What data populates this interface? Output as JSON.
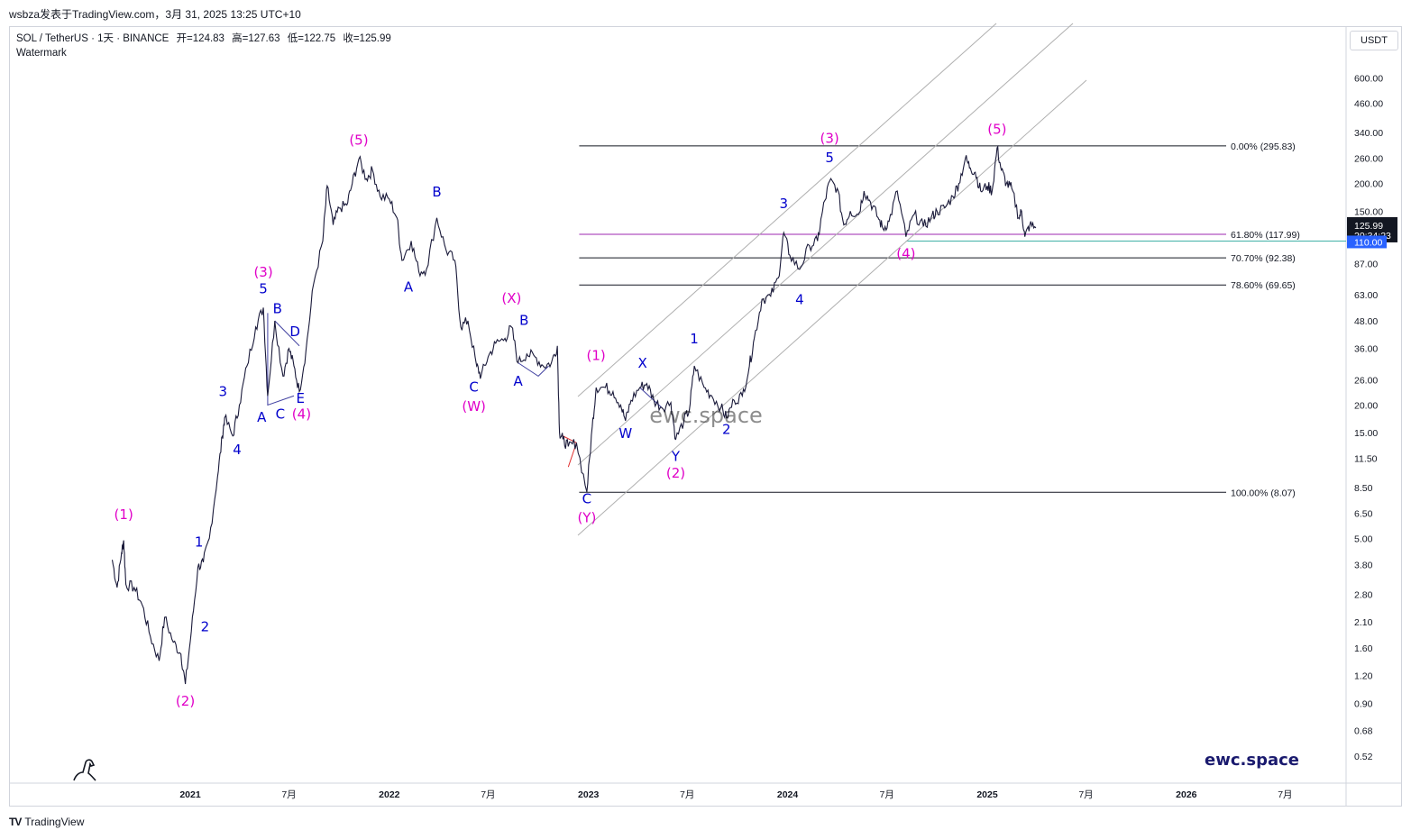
{
  "header": {
    "source": "wsbza发表于TradingView.com，3月 31, 2025 13:25 UTC+10"
  },
  "legend": {
    "symbol": "SOL / TetherUS · 1天 · BINANCE",
    "open": "开=124.83",
    "high": "高=127.63",
    "low": "低=122.75",
    "close": "收=125.99",
    "indicator": "Watermark"
  },
  "currency_button": "USDT",
  "footer": {
    "brand": "TradingView",
    "logo": "TV"
  },
  "watermark": "ewc.space",
  "brand_text": "ewc.space",
  "price_tags": {
    "last": "125.99",
    "countdown": "20:34:23",
    "line": "110.00"
  },
  "colors": {
    "pink": "#e000c8",
    "blue": "#0000cc",
    "price_line": "#1a1a3a",
    "fib_618": "#9c27b0",
    "channel": "#b0b0b0",
    "tag_blue": "#2962ff",
    "tag_dark": "#131722"
  },
  "chart_data": {
    "type": "line",
    "title": "SOL / TetherUS",
    "scale": "log",
    "y_axis_ticks": [
      "600.00",
      "460.00",
      "340.00",
      "260.00",
      "200.00",
      "150.00",
      "110.00",
      "87.00",
      "63.00",
      "48.00",
      "36.00",
      "26.00",
      "20.00",
      "15.00",
      "11.50",
      "8.50",
      "6.50",
      "5.00",
      "3.80",
      "2.80",
      "2.10",
      "1.60",
      "1.20",
      "0.90",
      "0.68",
      "0.52"
    ],
    "x_axis_ticks": [
      "2021",
      "7月",
      "2022",
      "7月",
      "2023",
      "7月",
      "2024",
      "7月",
      "2025",
      "7月",
      "2026",
      "7月"
    ],
    "series": [
      {
        "points": [
          [
            "2020-08-11",
            4.0
          ],
          [
            "2020-08-20",
            3.0
          ],
          [
            "2020-08-28",
            4.3
          ],
          [
            "2020-09-01",
            4.9
          ],
          [
            "2020-09-05",
            3.1
          ],
          [
            "2020-09-20",
            3.0
          ],
          [
            "2020-10-05",
            2.5
          ],
          [
            "2020-10-20",
            1.8
          ],
          [
            "2020-11-05",
            1.4
          ],
          [
            "2020-11-15",
            2.2
          ],
          [
            "2020-12-01",
            1.7
          ],
          [
            "2020-12-15",
            1.5
          ],
          [
            "2020-12-23",
            1.1
          ],
          [
            "2021-01-03",
            1.9
          ],
          [
            "2021-01-15",
            3.7
          ],
          [
            "2021-01-25",
            3.9
          ],
          [
            "2021-02-05",
            5.0
          ],
          [
            "2021-02-20",
            9.5
          ],
          [
            "2021-03-01",
            14.5
          ],
          [
            "2021-03-05",
            17.5
          ],
          [
            "2021-03-20",
            14.5
          ],
          [
            "2021-04-01",
            20.0
          ],
          [
            "2021-04-15",
            30.0
          ],
          [
            "2021-05-01",
            45.0
          ],
          [
            "2021-05-15",
            55.0
          ],
          [
            "2021-05-23",
            22.0
          ],
          [
            "2021-06-05",
            48.0
          ],
          [
            "2021-06-20",
            27.0
          ],
          [
            "2021-07-01",
            36.0
          ],
          [
            "2021-07-10",
            30.0
          ],
          [
            "2021-07-20",
            23.0
          ],
          [
            "2021-08-01",
            35.0
          ],
          [
            "2021-08-15",
            70.0
          ],
          [
            "2021-09-01",
            110.0
          ],
          [
            "2021-09-09",
            195.0
          ],
          [
            "2021-09-20",
            130.0
          ],
          [
            "2021-10-01",
            155.0
          ],
          [
            "2021-10-15",
            160.0
          ],
          [
            "2021-10-25",
            200.0
          ],
          [
            "2021-11-06",
            258.0
          ],
          [
            "2021-11-20",
            210.0
          ],
          [
            "2021-12-01",
            230.0
          ],
          [
            "2021-12-15",
            175.0
          ],
          [
            "2022-01-01",
            170.0
          ],
          [
            "2022-01-15",
            140.0
          ],
          [
            "2022-01-24",
            90.0
          ],
          [
            "2022-02-10",
            110.0
          ],
          [
            "2022-02-24",
            80.0
          ],
          [
            "2022-03-10",
            82.0
          ],
          [
            "2022-03-29",
            140.0
          ],
          [
            "2022-04-15",
            100.0
          ],
          [
            "2022-05-01",
            90.0
          ],
          [
            "2022-05-12",
            45.0
          ],
          [
            "2022-05-25",
            48.0
          ],
          [
            "2022-06-10",
            30.0
          ],
          [
            "2022-06-18",
            27.0
          ],
          [
            "2022-07-01",
            33.0
          ],
          [
            "2022-07-15",
            38.0
          ],
          [
            "2022-08-01",
            40.0
          ],
          [
            "2022-08-13",
            45.0
          ],
          [
            "2022-08-25",
            31.0
          ],
          [
            "2022-09-10",
            34.0
          ],
          [
            "2022-09-25",
            33.0
          ],
          [
            "2022-10-10",
            30.0
          ],
          [
            "2022-10-25",
            31.0
          ],
          [
            "2022-11-05",
            37.0
          ],
          [
            "2022-11-09",
            15.0
          ],
          [
            "2022-11-15",
            14.0
          ],
          [
            "2022-11-25",
            13.0
          ],
          [
            "2022-12-10",
            13.5
          ],
          [
            "2022-12-29",
            8.1
          ],
          [
            "2023-01-08",
            16.0
          ],
          [
            "2023-01-15",
            24.0
          ],
          [
            "2023-02-01",
            24.0
          ],
          [
            "2023-02-15",
            23.0
          ],
          [
            "2023-03-01",
            20.0
          ],
          [
            "2023-03-10",
            17.0
          ],
          [
            "2023-03-20",
            21.0
          ],
          [
            "2023-04-05",
            24.0
          ],
          [
            "2023-04-18",
            25.0
          ],
          [
            "2023-05-01",
            21.0
          ],
          [
            "2023-05-15",
            19.5
          ],
          [
            "2023-06-01",
            20.5
          ],
          [
            "2023-06-10",
            14.0
          ],
          [
            "2023-06-25",
            17.0
          ],
          [
            "2023-07-05",
            19.0
          ],
          [
            "2023-07-14",
            30.0
          ],
          [
            "2023-08-01",
            24.0
          ],
          [
            "2023-08-15",
            22.0
          ],
          [
            "2023-09-01",
            19.5
          ],
          [
            "2023-09-11",
            17.5
          ],
          [
            "2023-09-25",
            21.0
          ],
          [
            "2023-10-10",
            22.0
          ],
          [
            "2023-10-23",
            30.0
          ],
          [
            "2023-11-01",
            40.0
          ],
          [
            "2023-11-15",
            60.0
          ],
          [
            "2023-12-01",
            62.0
          ],
          [
            "2023-12-15",
            75.0
          ],
          [
            "2023-12-25",
            120.0
          ],
          [
            "2024-01-05",
            95.0
          ],
          [
            "2024-01-23",
            82.0
          ],
          [
            "2024-02-10",
            105.0
          ],
          [
            "2024-02-25",
            110.0
          ],
          [
            "2024-03-05",
            150.0
          ],
          [
            "2024-03-18",
            205.0
          ],
          [
            "2024-04-01",
            190.0
          ],
          [
            "2024-04-13",
            130.0
          ],
          [
            "2024-04-25",
            150.0
          ],
          [
            "2024-05-10",
            145.0
          ],
          [
            "2024-05-20",
            185.0
          ],
          [
            "2024-06-01",
            165.0
          ],
          [
            "2024-06-15",
            140.0
          ],
          [
            "2024-06-24",
            125.0
          ],
          [
            "2024-07-05",
            135.0
          ],
          [
            "2024-07-20",
            185.0
          ],
          [
            "2024-08-05",
            115.0
          ],
          [
            "2024-08-20",
            145.0
          ],
          [
            "2024-09-06",
            128.0
          ],
          [
            "2024-09-20",
            140.0
          ],
          [
            "2024-10-01",
            150.0
          ],
          [
            "2024-10-15",
            155.0
          ],
          [
            "2024-10-30",
            175.0
          ],
          [
            "2024-11-10",
            200.0
          ],
          [
            "2024-11-22",
            260.0
          ],
          [
            "2024-12-01",
            235.0
          ],
          [
            "2024-12-10",
            225.0
          ],
          [
            "2024-12-20",
            185.0
          ],
          [
            "2025-01-01",
            195.0
          ],
          [
            "2025-01-10",
            185.0
          ],
          [
            "2025-01-19",
            290.0
          ],
          [
            "2025-01-27",
            230.0
          ],
          [
            "2025-02-05",
            200.0
          ],
          [
            "2025-02-15",
            190.0
          ],
          [
            "2025-02-28",
            140.0
          ],
          [
            "2025-03-05",
            150.0
          ],
          [
            "2025-03-11",
            115.0
          ],
          [
            "2025-03-20",
            130.0
          ],
          [
            "2025-03-31",
            126.0
          ]
        ]
      }
    ],
    "fib_levels": [
      {
        "label": "0.00% (295.83)",
        "value": 295.83
      },
      {
        "label": "61.80% (117.99)",
        "value": 117.99
      },
      {
        "label": "70.70% (92.38)",
        "value": 92.38
      },
      {
        "label": "78.60% (69.65)",
        "value": 69.65
      },
      {
        "label": "100.00% (8.07)",
        "value": 8.07
      }
    ],
    "wave_labels": [
      {
        "text": "(1)",
        "date": "2020-09-01",
        "price": 6.1,
        "color": "pink"
      },
      {
        "text": "(2)",
        "date": "2020-12-23",
        "price": 0.88,
        "color": "pink"
      },
      {
        "text": "1",
        "date": "2021-01-17",
        "price": 4.6,
        "color": "blue"
      },
      {
        "text": "2",
        "date": "2021-01-28",
        "price": 1.9,
        "color": "blue"
      },
      {
        "text": "3",
        "date": "2021-03-02",
        "price": 22.0,
        "color": "blue"
      },
      {
        "text": "4",
        "date": "2021-03-28",
        "price": 12.0,
        "color": "blue"
      },
      {
        "text": "5",
        "date": "2021-05-15",
        "price": 64.0,
        "color": "blue"
      },
      {
        "text": "(3)",
        "date": "2021-05-15",
        "price": 76.0,
        "color": "pink"
      },
      {
        "text": "A",
        "date": "2021-05-12",
        "price": 16.8,
        "color": "blue"
      },
      {
        "text": "B",
        "date": "2021-06-10",
        "price": 52.0,
        "color": "blue"
      },
      {
        "text": "C",
        "date": "2021-06-15",
        "price": 17.4,
        "color": "blue"
      },
      {
        "text": "D",
        "date": "2021-07-12",
        "price": 41.0,
        "color": "blue"
      },
      {
        "text": "E",
        "date": "2021-07-22",
        "price": 20.5,
        "color": "blue"
      },
      {
        "text": "(4)",
        "date": "2021-07-24",
        "price": 17.4,
        "color": "pink"
      },
      {
        "text": "(5)",
        "date": "2021-11-06",
        "price": 300.0,
        "color": "pink"
      },
      {
        "text": "A",
        "date": "2022-02-05",
        "price": 65.0,
        "color": "blue"
      },
      {
        "text": "B",
        "date": "2022-03-29",
        "price": 175.0,
        "color": "blue"
      },
      {
        "text": "C",
        "date": "2022-06-05",
        "price": 23.0,
        "color": "blue"
      },
      {
        "text": "(W)",
        "date": "2022-06-05",
        "price": 18.8,
        "color": "pink"
      },
      {
        "text": "(X)",
        "date": "2022-08-13",
        "price": 58.0,
        "color": "pink"
      },
      {
        "text": "B",
        "date": "2022-09-05",
        "price": 46.0,
        "color": "blue"
      },
      {
        "text": "A",
        "date": "2022-08-25",
        "price": 24.5,
        "color": "blue"
      },
      {
        "text": "C",
        "date": "2022-12-29",
        "price": 7.2,
        "color": "blue"
      },
      {
        "text": "(Y)",
        "date": "2022-12-29",
        "price": 5.9,
        "color": "pink"
      },
      {
        "text": "(1)",
        "date": "2023-01-15",
        "price": 32.0,
        "color": "pink"
      },
      {
        "text": "W",
        "date": "2023-03-10",
        "price": 14.2,
        "color": "blue"
      },
      {
        "text": "X",
        "date": "2023-04-10",
        "price": 29.5,
        "color": "blue"
      },
      {
        "text": "Y",
        "date": "2023-06-10",
        "price": 11.2,
        "color": "blue"
      },
      {
        "text": "(2)",
        "date": "2023-06-10",
        "price": 9.4,
        "color": "pink"
      },
      {
        "text": "1",
        "date": "2023-07-14",
        "price": 38.0,
        "color": "blue"
      },
      {
        "text": "2",
        "date": "2023-09-11",
        "price": 14.8,
        "color": "blue"
      },
      {
        "text": "3",
        "date": "2023-12-25",
        "price": 155.0,
        "color": "blue"
      },
      {
        "text": "4",
        "date": "2024-01-23",
        "price": 57.0,
        "color": "blue"
      },
      {
        "text": "5",
        "date": "2024-03-18",
        "price": 250.0,
        "color": "blue"
      },
      {
        "text": "(3)",
        "date": "2024-03-18",
        "price": 305.0,
        "color": "pink"
      },
      {
        "text": "(4)",
        "date": "2024-08-05",
        "price": 92.0,
        "color": "pink"
      },
      {
        "text": "(5)",
        "date": "2025-01-19",
        "price": 335.0,
        "color": "pink"
      }
    ]
  }
}
